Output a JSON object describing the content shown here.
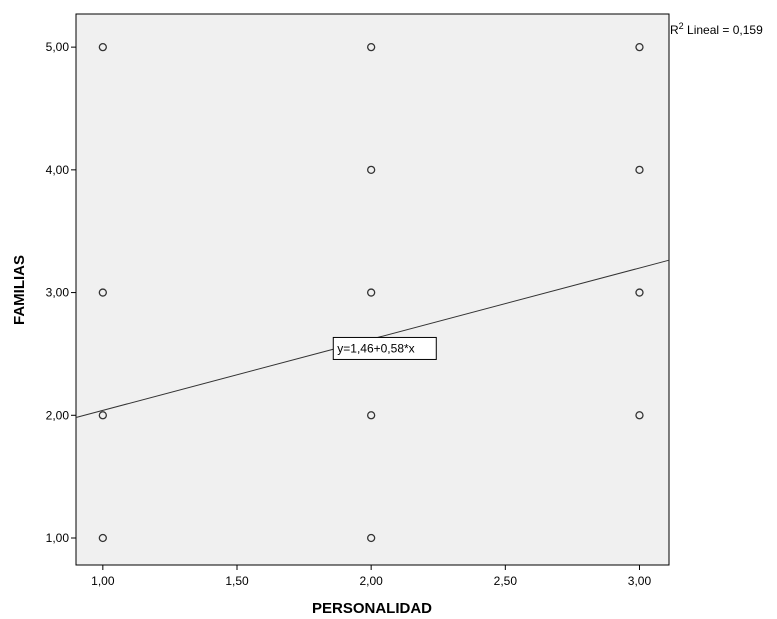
{
  "chart_data": {
    "type": "scatter",
    "title": "",
    "xlabel": "PERSONALIDAD",
    "ylabel": "FAMILIAS",
    "xlim": [
      0.9,
      3.11
    ],
    "ylim": [
      0.78,
      5.27
    ],
    "x_ticks": [
      1.0,
      1.5,
      2.0,
      2.5,
      3.0
    ],
    "x_tick_labels": [
      "1,00",
      "1,50",
      "2,00",
      "2,50",
      "3,00"
    ],
    "y_ticks": [
      1.0,
      2.0,
      3.0,
      4.0,
      5.0
    ],
    "y_tick_labels": [
      "1,00",
      "2,00",
      "3,00",
      "4,00",
      "5,00"
    ],
    "points": [
      {
        "x": 1,
        "y": 5
      },
      {
        "x": 1,
        "y": 3
      },
      {
        "x": 1,
        "y": 2
      },
      {
        "x": 1,
        "y": 1
      },
      {
        "x": 2,
        "y": 5
      },
      {
        "x": 2,
        "y": 4
      },
      {
        "x": 2,
        "y": 3
      },
      {
        "x": 2,
        "y": 2
      },
      {
        "x": 2,
        "y": 1
      },
      {
        "x": 3,
        "y": 5
      },
      {
        "x": 3,
        "y": 4
      },
      {
        "x": 3,
        "y": 3
      },
      {
        "x": 3,
        "y": 2
      }
    ],
    "fit_line": {
      "intercept": 1.46,
      "slope": 0.58,
      "equation_label": "y=1,46+0,58*x"
    },
    "r2_label": {
      "prefix": "R",
      "sup": "2",
      "text": " Lineal = 0,159"
    },
    "grid": false,
    "colors": {
      "plot_bg": "#f0f0f0",
      "frame": "#000000",
      "point": "#333333",
      "line": "#333333"
    }
  }
}
